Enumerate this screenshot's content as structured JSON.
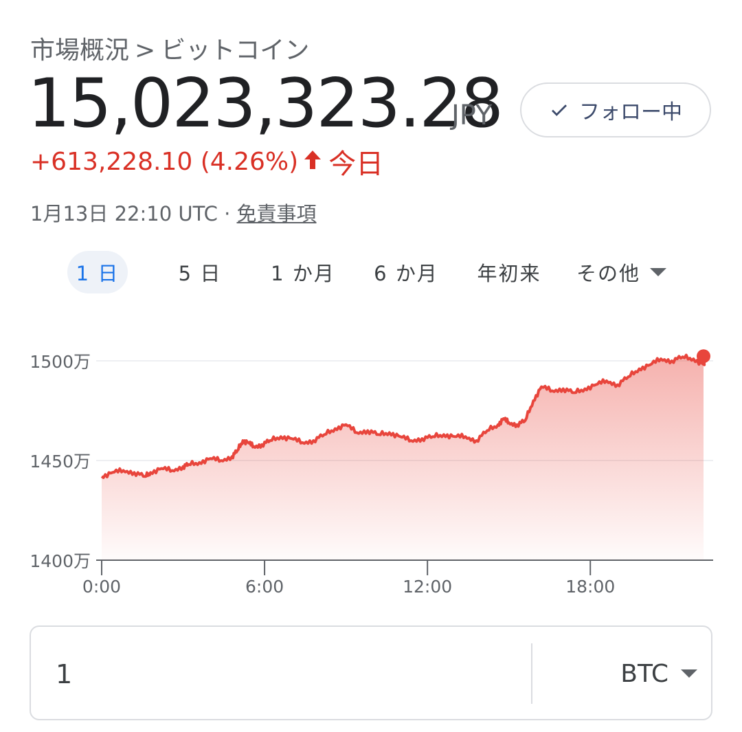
{
  "breadcrumb": {
    "parent": "市場概況",
    "separator": ">",
    "current": "ビットコイン"
  },
  "quote": {
    "price": "15,023,323.28",
    "currency": "JPY",
    "change": "+613,228.10 (4.26%)",
    "change_period": "今日",
    "timestamp": "1月13日 22:10 UTC",
    "dot": "·",
    "disclaimer": "免責事項"
  },
  "follow_button": {
    "label": "フォロー中",
    "icon": "check-icon"
  },
  "colors": {
    "up": "#d93025",
    "line": "#e8453c",
    "accent": "#1a73e8",
    "grid": "#e8eaed"
  },
  "tabs": [
    {
      "label": "1 日",
      "active": true
    },
    {
      "label": "5 日",
      "active": false
    },
    {
      "label": "1 か月",
      "active": false
    },
    {
      "label": "6 か月",
      "active": false
    },
    {
      "label": "年初来",
      "active": false
    },
    {
      "label": "その他",
      "active": false
    }
  ],
  "chart_data": {
    "type": "area",
    "x_ticks": [
      "0:00",
      "6:00",
      "12:00",
      "18:00"
    ],
    "x_tick_hours": [
      0,
      6,
      12,
      18
    ],
    "xlim": [
      0,
      24
    ],
    "y_ticks": [
      "1500万",
      "1450万",
      "1400万"
    ],
    "y_tick_values": [
      15000000,
      14500000,
      14000000
    ],
    "ylim": [
      14000000,
      15100000
    ],
    "grid": true,
    "series": [
      {
        "x": [
          0,
          0.4,
          0.8,
          1.2,
          1.6,
          1.8,
          2.2,
          2.6,
          3.0,
          3.2,
          3.6,
          4.0,
          4.4,
          4.8,
          5.0,
          5.2,
          5.4,
          5.6,
          5.9,
          6.2,
          6.6,
          7.0,
          7.4,
          7.8,
          8.2,
          8.6,
          9.0,
          9.4,
          9.8,
          10.2,
          10.6,
          11.0,
          11.4,
          11.8,
          12.2,
          12.6,
          13.0,
          13.4,
          13.8,
          14.2,
          14.6,
          14.8,
          15.0,
          15.3,
          15.6,
          15.9,
          16.2,
          16.6,
          17.0,
          17.4,
          17.8,
          18.2,
          18.6,
          19.0,
          19.4,
          19.8,
          20.2,
          20.6,
          21.0,
          21.4,
          21.8,
          22.2,
          22.17
        ],
        "y": [
          14420000,
          14440000,
          14450000,
          14440000,
          14420000,
          14440000,
          14460000,
          14450000,
          14470000,
          14480000,
          14490000,
          14510000,
          14500000,
          14520000,
          14550000,
          14600000,
          14590000,
          14570000,
          14580000,
          14600000,
          14620000,
          14610000,
          14590000,
          14600000,
          14630000,
          14660000,
          14680000,
          14640000,
          14650000,
          14630000,
          14640000,
          14620000,
          14600000,
          14610000,
          14620000,
          14630000,
          14620000,
          14620000,
          14600000,
          14650000,
          14680000,
          14710000,
          14690000,
          14680000,
          14700000,
          14800000,
          14870000,
          14850000,
          14860000,
          14840000,
          14860000,
          14880000,
          14900000,
          14880000,
          14920000,
          14960000,
          14980000,
          15010000,
          15000000,
          15020000,
          15010000,
          14980000,
          15023323
        ],
        "color": "#e8453c"
      }
    ],
    "last_value": 15023323.28
  },
  "converter": {
    "amount": "1",
    "unit": "BTC"
  }
}
